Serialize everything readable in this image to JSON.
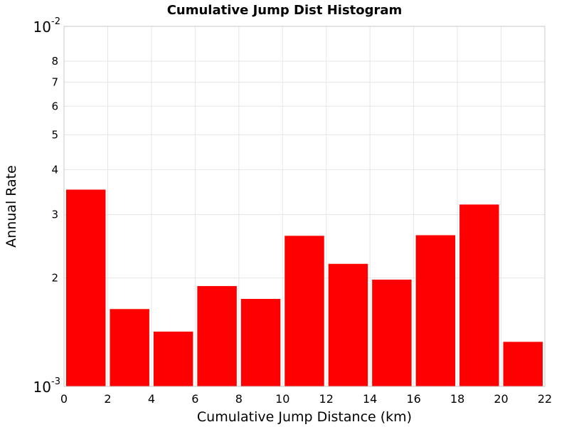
{
  "chart_data": {
    "type": "bar",
    "title": "Cumulative Jump Dist Histogram",
    "xlabel": "Cumulative Jump Distance (km)",
    "ylabel": "Annual Rate",
    "xlim": [
      0,
      22
    ],
    "ylim": [
      0.001,
      0.01
    ],
    "y_scale": "log",
    "grid": true,
    "bar_color": "#ff0000",
    "x_ticks": [
      "0",
      "2",
      "4",
      "6",
      "8",
      "10",
      "12",
      "14",
      "16",
      "18",
      "20",
      "22"
    ],
    "y_decade_ticks": [
      {
        "base": "10",
        "exp": "-2",
        "value": 0.01
      },
      {
        "base": "10",
        "exp": "-3",
        "value": 0.001
      }
    ],
    "y_minor_ticks": [
      {
        "label": "8",
        "value": 0.008
      },
      {
        "label": "7",
        "value": 0.007
      },
      {
        "label": "6",
        "value": 0.006
      },
      {
        "label": "5",
        "value": 0.005
      },
      {
        "label": "4",
        "value": 0.004
      },
      {
        "label": "3",
        "value": 0.003
      },
      {
        "label": "2",
        "value": 0.002
      }
    ],
    "bins": [
      {
        "x0": 0,
        "x1": 2,
        "value": 0.00352
      },
      {
        "x0": 2,
        "x1": 4,
        "value": 0.00164
      },
      {
        "x0": 4,
        "x1": 6,
        "value": 0.00142
      },
      {
        "x0": 6,
        "x1": 8,
        "value": 0.0019
      },
      {
        "x0": 8,
        "x1": 10,
        "value": 0.00175
      },
      {
        "x0": 10,
        "x1": 12,
        "value": 0.00262
      },
      {
        "x0": 12,
        "x1": 14,
        "value": 0.00219
      },
      {
        "x0": 14,
        "x1": 16,
        "value": 0.00198
      },
      {
        "x0": 16,
        "x1": 18,
        "value": 0.00263
      },
      {
        "x0": 18,
        "x1": 20,
        "value": 0.0032
      },
      {
        "x0": 20,
        "x1": 22,
        "value": 0.00133
      }
    ]
  }
}
